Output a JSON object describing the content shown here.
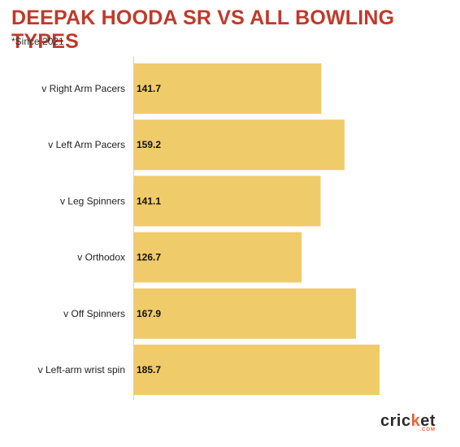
{
  "chart_data": {
    "type": "bar",
    "orientation": "horizontal",
    "title": "DEEPAK HOODA SR VS ALL BOWLING TYPES",
    "subtitle": "*Since 2021",
    "categories": [
      "v Right Arm Pacers",
      "v Left Arm Pacers",
      "v Leg Spinners",
      "v Orthodox",
      "v Off Spinners",
      "v Left-arm wrist spin"
    ],
    "values": [
      141.7,
      159.2,
      141.1,
      126.7,
      167.9,
      185.7
    ],
    "value_labels": [
      "141.7",
      "159.2",
      "141.1",
      "126.7",
      "167.9",
      "185.7"
    ],
    "xlim": [
      0,
      185.7
    ],
    "grid": false,
    "bar_color": "#f0cb6a",
    "title_color": "#c0392b"
  },
  "logo": {
    "text_pre": "cric",
    "text_dot": "k",
    "text_post": "et",
    "sub": ".COM"
  }
}
